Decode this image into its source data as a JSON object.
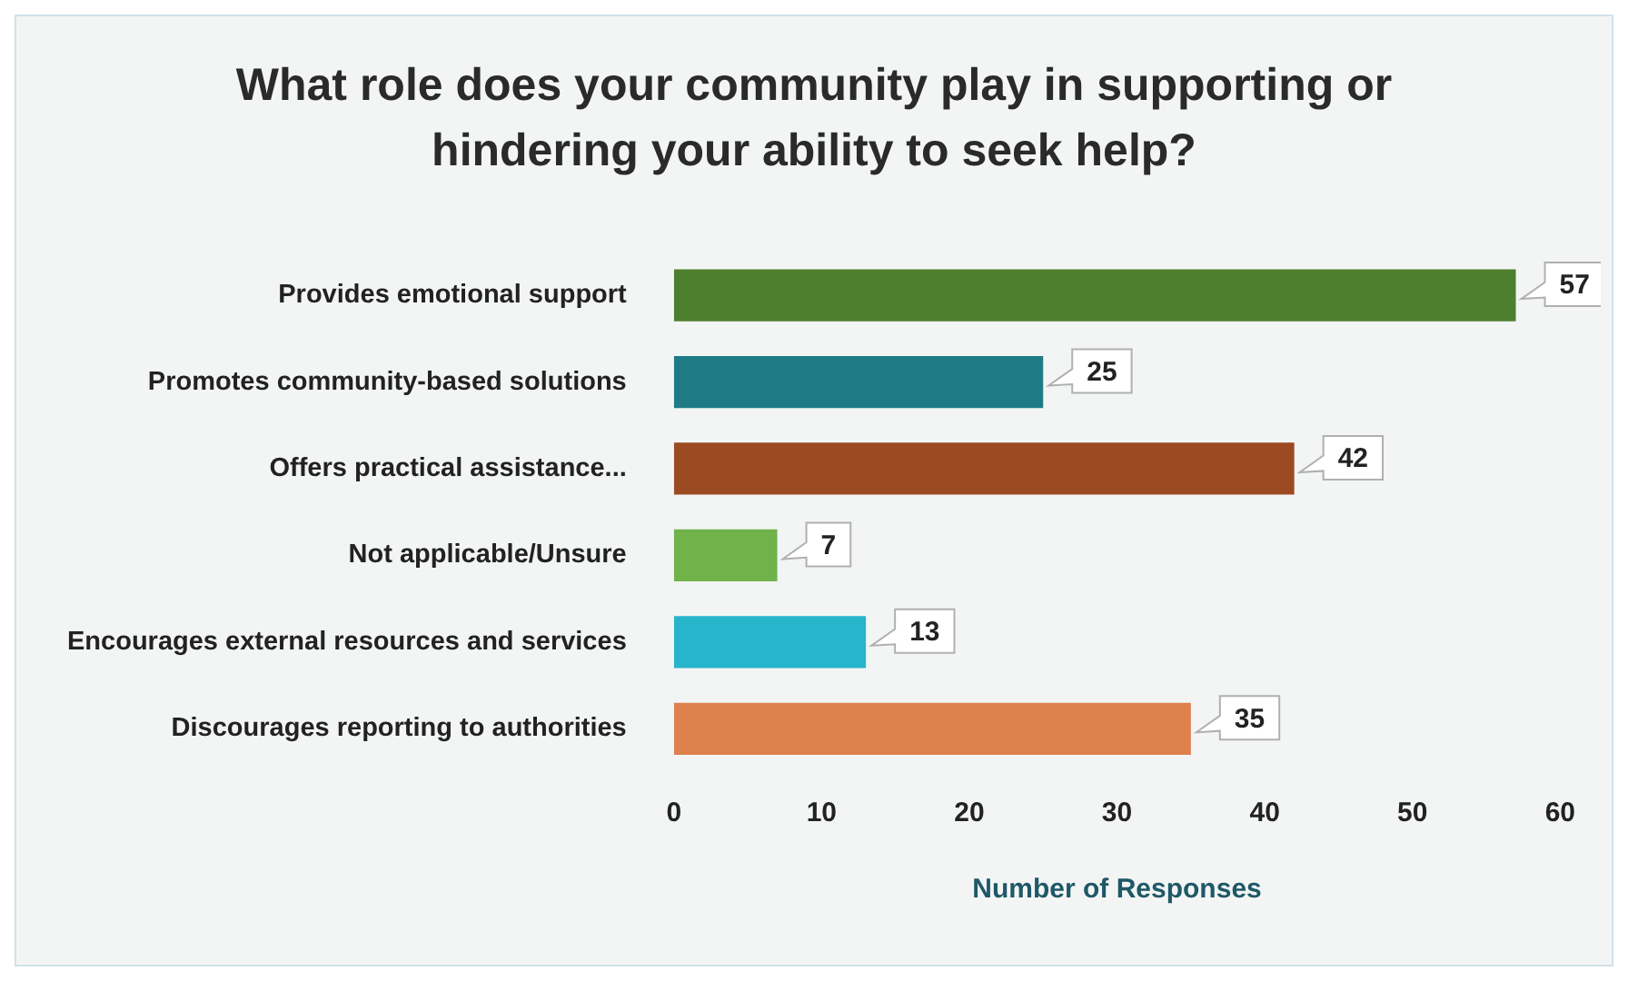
{
  "chart_data": {
    "type": "bar",
    "orientation": "horizontal",
    "title": "What role does your community play in supporting or hindering your ability to seek help?",
    "categories": [
      "Provides emotional support",
      "Promotes community-based solutions",
      "Offers practical assistance...",
      "Not applicable/Unsure",
      "Encourages external resources and services",
      "Discourages reporting to authorities"
    ],
    "values": [
      57,
      25,
      42,
      7,
      13,
      35
    ],
    "colors": [
      "#4e7f2f",
      "#1f7b86",
      "#9c4a22",
      "#6fb34a",
      "#27b5cc",
      "#de814d"
    ],
    "xlim": [
      0,
      60
    ],
    "xticks": [
      0,
      10,
      20,
      30,
      40,
      50,
      60
    ],
    "xlabel": "Number of Responses",
    "data_labels": true,
    "grid": false,
    "legend": false
  }
}
